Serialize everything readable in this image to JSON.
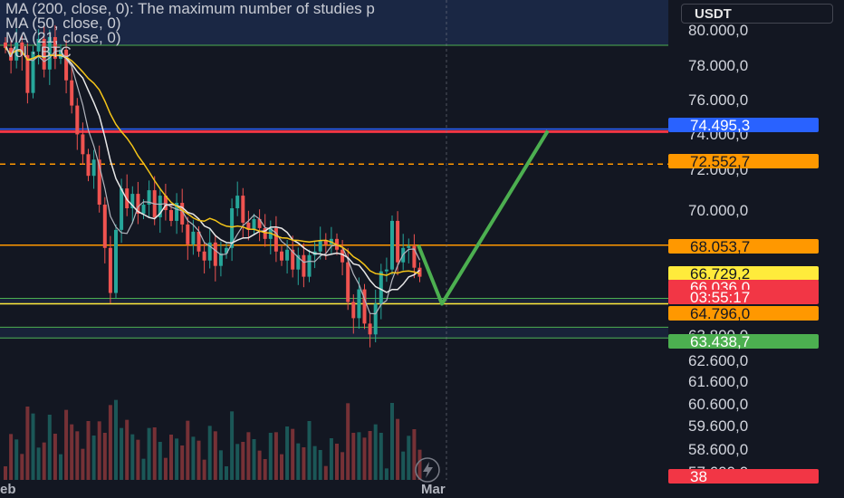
{
  "legend": {
    "ma200": "MA (200, close, 0): The maximum number of studies p",
    "ma50": "MA (50, close, 0)",
    "ma21": "MA (21, close, 0)",
    "vol": "Vol · BTC"
  },
  "currency_label": "USDT",
  "x_labels": {
    "left": "eb",
    "mar": "Mar"
  },
  "colors": {
    "background": "#131722",
    "up": "#26a69a",
    "down": "#ef5350",
    "ma200": "#f5c518",
    "ma50": "#e8e8e8",
    "ma21": "#b2b5be",
    "resistance_blue": "#2962ff",
    "resistance_red": "#f23645",
    "level_orange": "#ff9800",
    "level_yellow": "#ffeb3b",
    "support_green": "#4caf50",
    "projection_green": "#4caf50"
  },
  "chart_data": {
    "type": "candlestick",
    "symbol": "BTC/USDT",
    "y_ticks": [
      "80.000,0",
      "78.000,0",
      "76.000,0",
      "74.000,0",
      "72.000,0",
      "70.000,0",
      "63.800,0",
      "62.600,0",
      "61.600,0",
      "60.600,0",
      "59.600,0",
      "58.600,0",
      "57.600,0"
    ],
    "price_labels": [
      {
        "text": "74.495,3",
        "color": "#2962ff",
        "text_color": "#ffffff"
      },
      {
        "text": "72.552,7",
        "color": "#ff9800",
        "text_color": "#131722"
      },
      {
        "text": "68.053,7",
        "color": "#ff9800",
        "text_color": "#131722"
      },
      {
        "text": "66.729,2",
        "color": "#ffeb3b",
        "text_color": "#131722"
      },
      {
        "text": "66.036,0",
        "color": "#f23645",
        "text_color": "#ffffff"
      },
      {
        "text": "03:55:17",
        "color": "#f23645",
        "text_color": "#ffffff"
      },
      {
        "text": "64.796,0",
        "color": "#ff9800",
        "text_color": "#131722"
      },
      {
        "text": "63.438,7",
        "color": "#4caf50",
        "text_color": "#ffffff"
      },
      {
        "text": "38",
        "color": "#f23645",
        "text_color": "#ffffff"
      }
    ],
    "levels": [
      {
        "price": 74495.3,
        "style": "solid",
        "color": "#2962ff"
      },
      {
        "price": 74350,
        "style": "solid",
        "color": "#f23645"
      },
      {
        "price": 72552.7,
        "style": "dashed",
        "color": "#ff9800"
      },
      {
        "price": 68053.7,
        "style": "solid",
        "color": "#ff9800"
      },
      {
        "price": 64796.0,
        "style": "solid",
        "color": "#ffeb3b"
      }
    ],
    "zones": [
      {
        "from": 65100,
        "to": 64800,
        "color": "#4caf50"
      },
      {
        "from": 63500,
        "to": 62900,
        "color": "#4caf50"
      }
    ],
    "projection": [
      {
        "bar": 462,
        "price": 68053
      },
      {
        "bar": 488,
        "price": 64796
      },
      {
        "bar": 605,
        "price": 74400
      }
    ],
    "closes": [
      79000,
      78300,
      79300,
      78600,
      76500,
      78800,
      79500,
      77800,
      79600,
      78400,
      78900,
      77200,
      75800,
      74200,
      73100,
      71900,
      72800,
      70300,
      67900,
      65400,
      68900,
      71200,
      70100,
      70900,
      69800,
      70300,
      71100,
      69600,
      70800,
      70000,
      69400,
      70400,
      69200,
      68100,
      68800,
      67700,
      67200,
      68200,
      66900,
      67600,
      67900,
      70100,
      70800,
      69300,
      68900,
      69500,
      69000,
      68400,
      69000,
      67700,
      67200,
      67800,
      66700,
      67500,
      66300,
      67500,
      67700,
      68300,
      68100,
      68400,
      67800,
      67100,
      64900,
      64000,
      65600,
      63700,
      63100,
      64800,
      66600,
      66700,
      69400,
      67100,
      67900,
      68000,
      66800,
      66300
    ],
    "volume_scale": "relative"
  }
}
